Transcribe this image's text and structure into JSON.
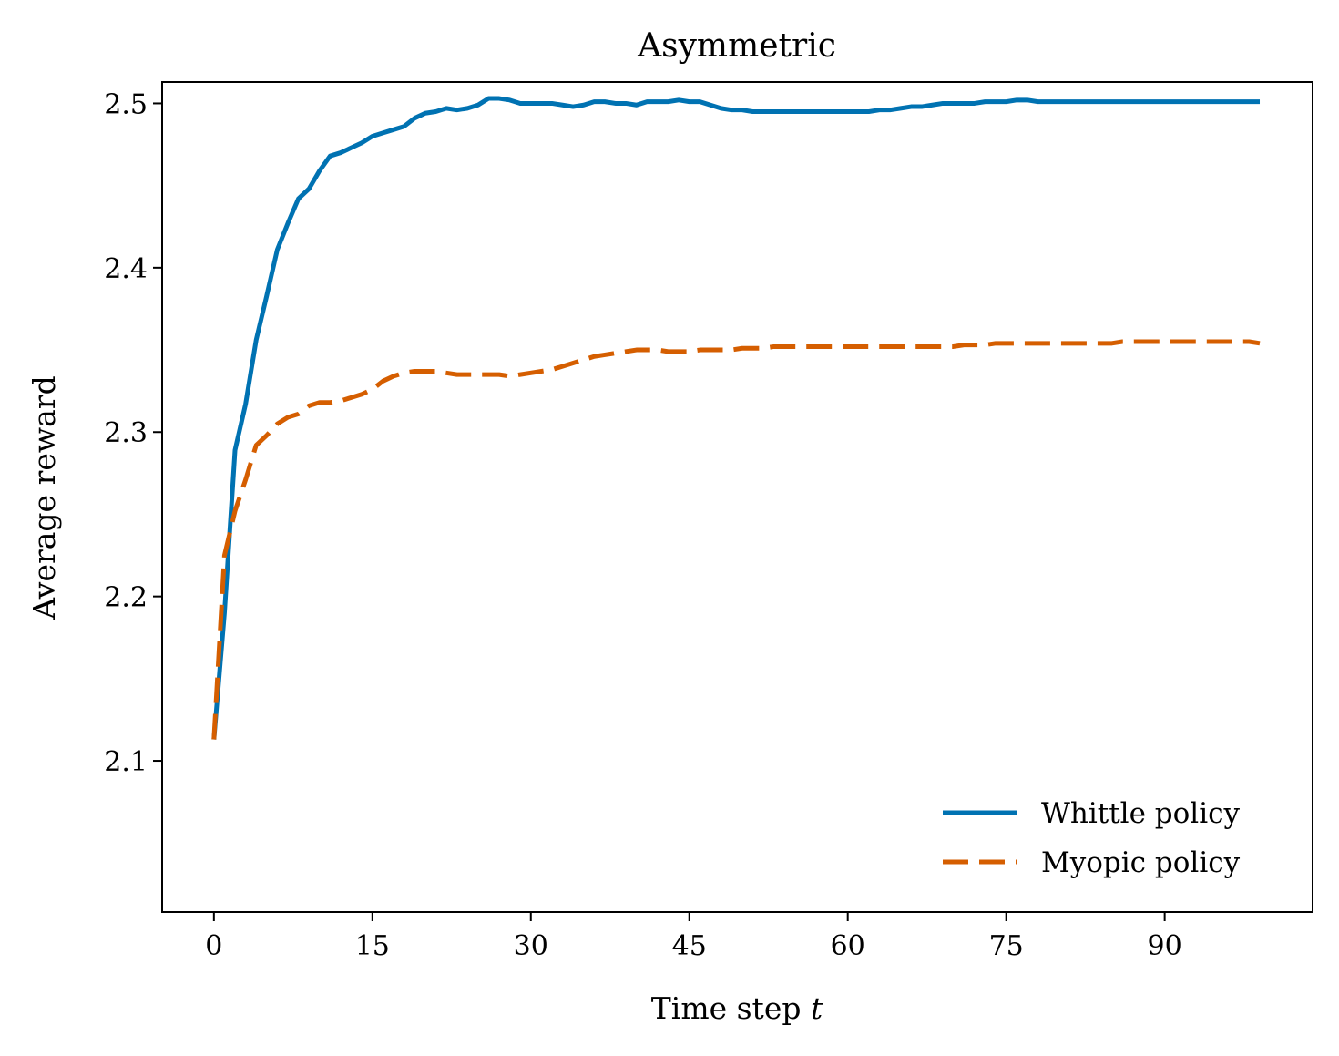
{
  "chart_data": {
    "type": "line",
    "title": "Asymmetric",
    "xlabel": "Time step",
    "xlabel_var": "t",
    "ylabel": "Average reward",
    "xlim": [
      -4.9,
      104
    ],
    "ylim": [
      2.008,
      2.513
    ],
    "xticks": [
      0,
      15,
      30,
      45,
      60,
      75,
      90
    ],
    "yticks": [
      2.1,
      2.2,
      2.3,
      2.4,
      2.5
    ],
    "xtick_labels": [
      "0",
      "15",
      "30",
      "45",
      "60",
      "75",
      "90"
    ],
    "ytick_labels": [
      "2.1",
      "2.2",
      "2.3",
      "2.4",
      "2.5"
    ],
    "grid": false,
    "legend": "lower-right",
    "series": [
      {
        "name": "Whittle policy",
        "color": "#0072B2",
        "style": "solid",
        "points": [
          [
            0,
            2.113
          ],
          [
            1,
            2.19
          ],
          [
            2,
            2.289
          ],
          [
            3,
            2.317
          ],
          [
            4,
            2.356
          ],
          [
            5,
            2.383
          ],
          [
            6,
            2.411
          ],
          [
            7,
            2.427
          ],
          [
            8,
            2.442
          ],
          [
            9,
            2.448
          ],
          [
            10,
            2.459
          ],
          [
            11,
            2.468
          ],
          [
            12,
            2.47
          ],
          [
            13,
            2.473
          ],
          [
            14,
            2.476
          ],
          [
            15,
            2.48
          ],
          [
            16,
            2.482
          ],
          [
            17,
            2.484
          ],
          [
            18,
            2.486
          ],
          [
            19,
            2.491
          ],
          [
            20,
            2.494
          ],
          [
            21,
            2.495
          ],
          [
            22,
            2.497
          ],
          [
            23,
            2.496
          ],
          [
            24,
            2.497
          ],
          [
            25,
            2.499
          ],
          [
            26,
            2.503
          ],
          [
            27,
            2.503
          ],
          [
            28,
            2.502
          ],
          [
            29,
            2.5
          ],
          [
            30,
            2.5
          ],
          [
            31,
            2.5
          ],
          [
            32,
            2.5
          ],
          [
            33,
            2.499
          ],
          [
            34,
            2.498
          ],
          [
            35,
            2.499
          ],
          [
            36,
            2.501
          ],
          [
            37,
            2.501
          ],
          [
            38,
            2.5
          ],
          [
            39,
            2.5
          ],
          [
            40,
            2.499
          ],
          [
            41,
            2.501
          ],
          [
            42,
            2.501
          ],
          [
            43,
            2.501
          ],
          [
            44,
            2.502
          ],
          [
            45,
            2.501
          ],
          [
            46,
            2.501
          ],
          [
            47,
            2.499
          ],
          [
            48,
            2.497
          ],
          [
            49,
            2.496
          ],
          [
            50,
            2.496
          ],
          [
            51,
            2.495
          ],
          [
            52,
            2.495
          ],
          [
            53,
            2.495
          ],
          [
            54,
            2.495
          ],
          [
            55,
            2.495
          ],
          [
            56,
            2.495
          ],
          [
            57,
            2.495
          ],
          [
            58,
            2.495
          ],
          [
            59,
            2.495
          ],
          [
            60,
            2.495
          ],
          [
            61,
            2.495
          ],
          [
            62,
            2.495
          ],
          [
            63,
            2.496
          ],
          [
            64,
            2.496
          ],
          [
            65,
            2.497
          ],
          [
            66,
            2.498
          ],
          [
            67,
            2.498
          ],
          [
            68,
            2.499
          ],
          [
            69,
            2.5
          ],
          [
            70,
            2.5
          ],
          [
            71,
            2.5
          ],
          [
            72,
            2.5
          ],
          [
            73,
            2.501
          ],
          [
            74,
            2.501
          ],
          [
            75,
            2.501
          ],
          [
            76,
            2.502
          ],
          [
            77,
            2.502
          ],
          [
            78,
            2.501
          ],
          [
            79,
            2.501
          ],
          [
            80,
            2.501
          ],
          [
            81,
            2.501
          ],
          [
            82,
            2.501
          ],
          [
            83,
            2.501
          ],
          [
            84,
            2.501
          ],
          [
            85,
            2.501
          ],
          [
            86,
            2.501
          ],
          [
            87,
            2.501
          ],
          [
            88,
            2.501
          ],
          [
            89,
            2.501
          ],
          [
            90,
            2.501
          ],
          [
            91,
            2.501
          ],
          [
            92,
            2.501
          ],
          [
            93,
            2.501
          ],
          [
            94,
            2.501
          ],
          [
            95,
            2.501
          ],
          [
            96,
            2.501
          ],
          [
            97,
            2.501
          ],
          [
            98,
            2.501
          ],
          [
            99,
            2.501
          ]
        ]
      },
      {
        "name": "Myopic policy",
        "color": "#D55E00",
        "style": "dashed",
        "points": [
          [
            0,
            2.113
          ],
          [
            1,
            2.225
          ],
          [
            2,
            2.252
          ],
          [
            3,
            2.271
          ],
          [
            4,
            2.292
          ],
          [
            5,
            2.298
          ],
          [
            6,
            2.305
          ],
          [
            7,
            2.309
          ],
          [
            8,
            2.311
          ],
          [
            9,
            2.316
          ],
          [
            10,
            2.318
          ],
          [
            11,
            2.318
          ],
          [
            12,
            2.319
          ],
          [
            13,
            2.321
          ],
          [
            14,
            2.323
          ],
          [
            15,
            2.326
          ],
          [
            16,
            2.331
          ],
          [
            17,
            2.334
          ],
          [
            18,
            2.336
          ],
          [
            19,
            2.337
          ],
          [
            20,
            2.337
          ],
          [
            21,
            2.337
          ],
          [
            22,
            2.336
          ],
          [
            23,
            2.335
          ],
          [
            24,
            2.335
          ],
          [
            25,
            2.335
          ],
          [
            26,
            2.335
          ],
          [
            27,
            2.335
          ],
          [
            28,
            2.334
          ],
          [
            29,
            2.335
          ],
          [
            30,
            2.336
          ],
          [
            31,
            2.337
          ],
          [
            32,
            2.338
          ],
          [
            33,
            2.34
          ],
          [
            34,
            2.342
          ],
          [
            35,
            2.344
          ],
          [
            36,
            2.346
          ],
          [
            37,
            2.347
          ],
          [
            38,
            2.348
          ],
          [
            39,
            2.349
          ],
          [
            40,
            2.35
          ],
          [
            41,
            2.35
          ],
          [
            42,
            2.35
          ],
          [
            43,
            2.349
          ],
          [
            44,
            2.349
          ],
          [
            45,
            2.349
          ],
          [
            46,
            2.35
          ],
          [
            47,
            2.35
          ],
          [
            48,
            2.35
          ],
          [
            49,
            2.35
          ],
          [
            50,
            2.351
          ],
          [
            51,
            2.351
          ],
          [
            52,
            2.351
          ],
          [
            53,
            2.352
          ],
          [
            54,
            2.352
          ],
          [
            55,
            2.352
          ],
          [
            56,
            2.352
          ],
          [
            57,
            2.352
          ],
          [
            58,
            2.352
          ],
          [
            59,
            2.352
          ],
          [
            60,
            2.352
          ],
          [
            61,
            2.352
          ],
          [
            62,
            2.352
          ],
          [
            63,
            2.352
          ],
          [
            64,
            2.352
          ],
          [
            65,
            2.352
          ],
          [
            66,
            2.352
          ],
          [
            67,
            2.352
          ],
          [
            68,
            2.352
          ],
          [
            69,
            2.352
          ],
          [
            70,
            2.352
          ],
          [
            71,
            2.353
          ],
          [
            72,
            2.353
          ],
          [
            73,
            2.353
          ],
          [
            74,
            2.354
          ],
          [
            75,
            2.354
          ],
          [
            76,
            2.354
          ],
          [
            77,
            2.354
          ],
          [
            78,
            2.354
          ],
          [
            79,
            2.354
          ],
          [
            80,
            2.354
          ],
          [
            81,
            2.354
          ],
          [
            82,
            2.354
          ],
          [
            83,
            2.354
          ],
          [
            84,
            2.354
          ],
          [
            85,
            2.354
          ],
          [
            86,
            2.355
          ],
          [
            87,
            2.355
          ],
          [
            88,
            2.355
          ],
          [
            89,
            2.355
          ],
          [
            90,
            2.355
          ],
          [
            91,
            2.355
          ],
          [
            92,
            2.355
          ],
          [
            93,
            2.355
          ],
          [
            94,
            2.355
          ],
          [
            95,
            2.355
          ],
          [
            96,
            2.355
          ],
          [
            97,
            2.355
          ],
          [
            98,
            2.355
          ],
          [
            99,
            2.354
          ]
        ]
      }
    ]
  }
}
